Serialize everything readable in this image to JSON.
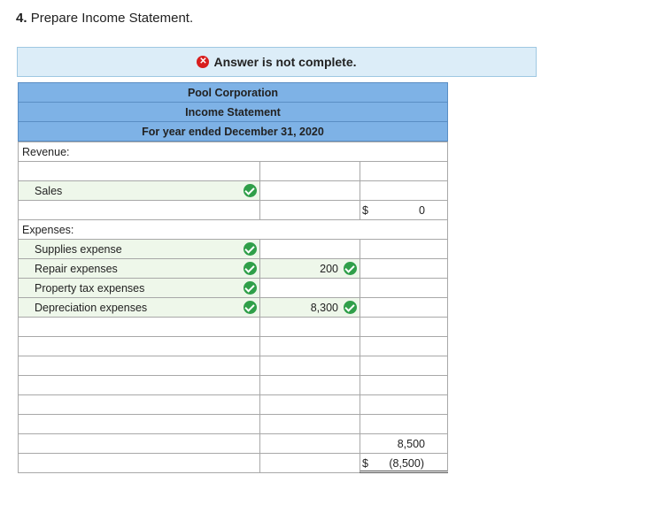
{
  "question": {
    "number": "4.",
    "text": "Prepare Income Statement."
  },
  "banner": {
    "text": "Answer is not complete."
  },
  "statement": {
    "company": "Pool Corporation",
    "title": "Income Statement",
    "period": "For year ended December 31, 2020"
  },
  "rows": {
    "revenue_label": "Revenue:",
    "sales_label": "Sales",
    "revenue_total_dollar": "$",
    "revenue_total_value": "0",
    "expenses_label": "Expenses:",
    "supplies_label": "Supplies expense",
    "repair_label": "Repair expenses",
    "repair_value": "200",
    "property_label": "Property tax expenses",
    "depreciation_label": "Depreciation expenses",
    "depreciation_value": "8,300",
    "total_expenses_value": "8,500",
    "net_dollar": "$",
    "net_value": "(8,500)"
  },
  "colors": {
    "header_bg": "#7eb2e6",
    "banner_bg": "#dcedf8",
    "correct": "#2f9f49",
    "error": "#d81e1e"
  }
}
